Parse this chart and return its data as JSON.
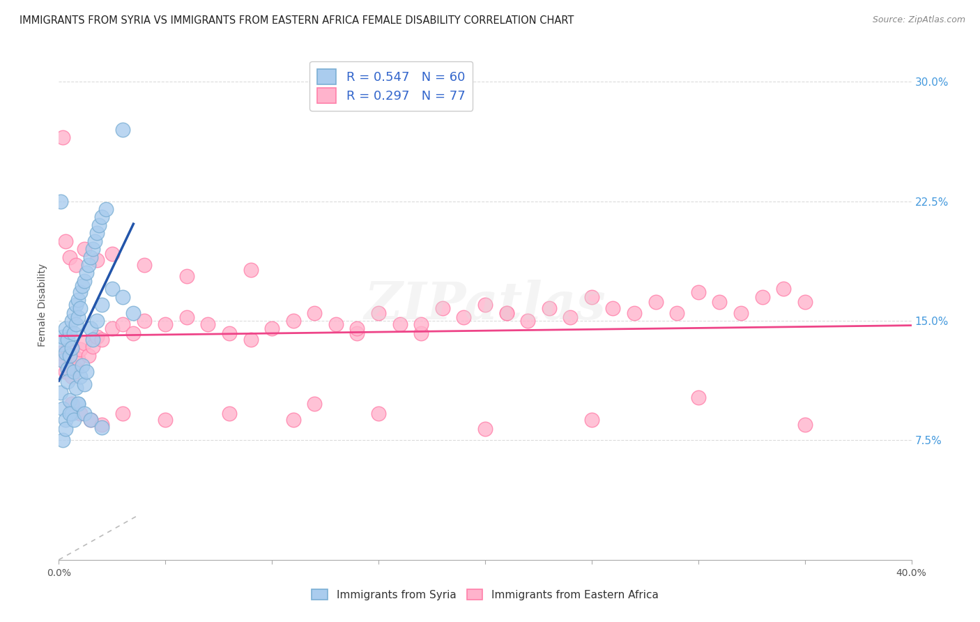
{
  "title": "IMMIGRANTS FROM SYRIA VS IMMIGRANTS FROM EASTERN AFRICA FEMALE DISABILITY CORRELATION CHART",
  "source": "Source: ZipAtlas.com",
  "ylabel": "Female Disability",
  "ytick_vals": [
    0.075,
    0.15,
    0.225,
    0.3
  ],
  "ytick_labels": [
    "7.5%",
    "15.0%",
    "22.5%",
    "30.0%"
  ],
  "xlim": [
    0.0,
    0.4
  ],
  "ylim": [
    0.0,
    0.32
  ],
  "series": [
    {
      "name": "Immigrants from Syria",
      "R": 0.547,
      "N": 60,
      "fill_color": "#AACCEE",
      "edge_color": "#7BAFD4",
      "trend_color": "#2255AA"
    },
    {
      "name": "Immigrants from Eastern Africa",
      "R": 0.297,
      "N": 77,
      "fill_color": "#FFB3CC",
      "edge_color": "#FF80AA",
      "trend_color": "#EE4488"
    }
  ],
  "background_color": "#FFFFFF",
  "grid_color": "#CCCCCC",
  "watermark": "ZIPatlas",
  "syria_x": [
    0.001,
    0.002,
    0.002,
    0.003,
    0.003,
    0.004,
    0.004,
    0.005,
    0.005,
    0.006,
    0.006,
    0.007,
    0.007,
    0.008,
    0.008,
    0.009,
    0.009,
    0.01,
    0.01,
    0.011,
    0.012,
    0.013,
    0.014,
    0.015,
    0.016,
    0.017,
    0.018,
    0.019,
    0.02,
    0.022,
    0.001,
    0.002,
    0.003,
    0.004,
    0.005,
    0.006,
    0.007,
    0.008,
    0.009,
    0.01,
    0.011,
    0.012,
    0.013,
    0.015,
    0.016,
    0.018,
    0.02,
    0.025,
    0.03,
    0.035,
    0.001,
    0.002,
    0.003,
    0.005,
    0.007,
    0.009,
    0.012,
    0.015,
    0.02,
    0.03
  ],
  "syria_y": [
    0.135,
    0.14,
    0.125,
    0.13,
    0.145,
    0.138,
    0.12,
    0.143,
    0.128,
    0.15,
    0.133,
    0.155,
    0.142,
    0.16,
    0.148,
    0.163,
    0.152,
    0.168,
    0.158,
    0.172,
    0.175,
    0.18,
    0.185,
    0.19,
    0.195,
    0.2,
    0.205,
    0.21,
    0.215,
    0.22,
    0.105,
    0.095,
    0.088,
    0.112,
    0.1,
    0.092,
    0.118,
    0.108,
    0.098,
    0.115,
    0.122,
    0.11,
    0.118,
    0.145,
    0.138,
    0.15,
    0.16,
    0.17,
    0.165,
    0.155,
    0.225,
    0.075,
    0.082,
    0.092,
    0.088,
    0.098,
    0.092,
    0.088,
    0.083,
    0.27
  ],
  "east_africa_x": [
    0.001,
    0.002,
    0.003,
    0.004,
    0.005,
    0.006,
    0.007,
    0.008,
    0.009,
    0.01,
    0.012,
    0.014,
    0.016,
    0.018,
    0.02,
    0.025,
    0.03,
    0.035,
    0.04,
    0.05,
    0.06,
    0.07,
    0.08,
    0.09,
    0.1,
    0.11,
    0.12,
    0.13,
    0.14,
    0.15,
    0.16,
    0.17,
    0.18,
    0.19,
    0.2,
    0.21,
    0.22,
    0.23,
    0.24,
    0.25,
    0.26,
    0.27,
    0.28,
    0.29,
    0.3,
    0.31,
    0.32,
    0.33,
    0.34,
    0.35,
    0.003,
    0.005,
    0.008,
    0.012,
    0.018,
    0.025,
    0.04,
    0.06,
    0.09,
    0.12,
    0.15,
    0.2,
    0.25,
    0.3,
    0.35,
    0.002,
    0.006,
    0.01,
    0.015,
    0.02,
    0.03,
    0.05,
    0.08,
    0.11,
    0.14,
    0.17,
    0.21
  ],
  "east_africa_y": [
    0.13,
    0.125,
    0.118,
    0.132,
    0.122,
    0.115,
    0.128,
    0.12,
    0.126,
    0.132,
    0.136,
    0.128,
    0.134,
    0.14,
    0.138,
    0.145,
    0.148,
    0.142,
    0.15,
    0.148,
    0.152,
    0.148,
    0.142,
    0.138,
    0.145,
    0.15,
    0.155,
    0.148,
    0.142,
    0.155,
    0.148,
    0.142,
    0.158,
    0.152,
    0.16,
    0.155,
    0.15,
    0.158,
    0.152,
    0.165,
    0.158,
    0.155,
    0.162,
    0.155,
    0.168,
    0.162,
    0.155,
    0.165,
    0.17,
    0.162,
    0.2,
    0.19,
    0.185,
    0.195,
    0.188,
    0.192,
    0.185,
    0.178,
    0.182,
    0.098,
    0.092,
    0.082,
    0.088,
    0.102,
    0.085,
    0.265,
    0.098,
    0.092,
    0.088,
    0.085,
    0.092,
    0.088,
    0.092,
    0.088,
    0.145,
    0.148,
    0.155
  ]
}
